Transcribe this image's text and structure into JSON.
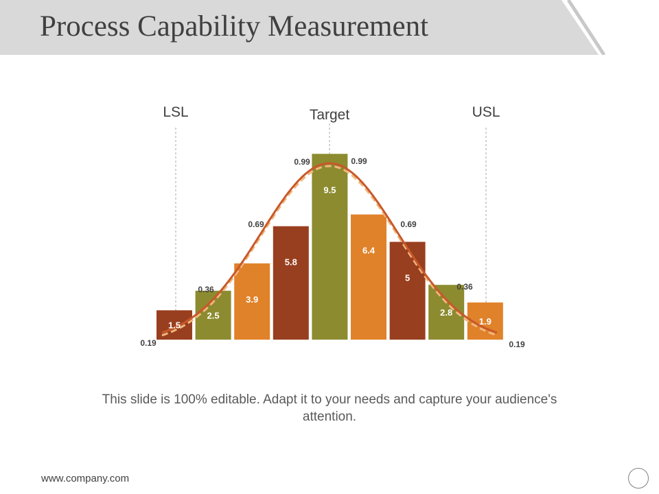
{
  "slide": {
    "title": "Process Capability Measurement",
    "caption": "This slide is 100% editable. Adapt it to your needs and capture your audience's attention.",
    "footer_url": "www.company.com"
  },
  "colors": {
    "header_band": "#d9d9d9",
    "dark": "#983f1f",
    "olive": "#8c8b2f",
    "orange": "#e0822a",
    "curve_solid": "#c8582a",
    "curve_dashed": "#f0b87e"
  },
  "chart_data": {
    "type": "bar",
    "title": "",
    "bars": [
      {
        "value": 1.5,
        "color": "dark"
      },
      {
        "value": 2.5,
        "color": "olive"
      },
      {
        "value": 3.9,
        "color": "orange"
      },
      {
        "value": 5.8,
        "color": "dark"
      },
      {
        "value": 9.5,
        "color": "olive"
      },
      {
        "value": 6.4,
        "color": "orange"
      },
      {
        "value": 5,
        "color": "dark"
      },
      {
        "value": 2.8,
        "color": "olive"
      },
      {
        "value": 1.9,
        "color": "orange"
      }
    ],
    "curve_labels": [
      "0.19",
      "0.36",
      "0.69",
      "0.99",
      "0.99",
      "0.69",
      "0.36",
      "0.19"
    ],
    "spec_limits": {
      "lsl": "LSL",
      "target": "Target",
      "usl": "USL"
    },
    "ylim": [
      0,
      10
    ]
  }
}
